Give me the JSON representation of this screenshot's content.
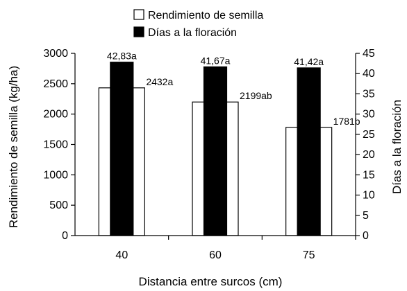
{
  "chart_data": {
    "type": "bar",
    "categories": [
      "40",
      "60",
      "75"
    ],
    "xlabel": "Distancia entre surcos (cm)",
    "ylabel_left": "Rendimiento de semilla (kg/ha)",
    "ylabel_right": "Días a la floración",
    "ylim_left": [
      0,
      3000
    ],
    "yticks_left": [
      0,
      500,
      1000,
      1500,
      2000,
      2500,
      3000
    ],
    "ylim_right": [
      0,
      45
    ],
    "yticks_right": [
      0,
      5,
      10,
      15,
      20,
      25,
      30,
      35,
      40,
      45
    ],
    "grid": false,
    "legend_position": "top-center",
    "series": [
      {
        "name": "Rendimiento de semilla",
        "axis": "left",
        "color": "#ffffff",
        "values": [
          2432,
          2199,
          1781
        ],
        "labels": [
          "2432a",
          "2199ab",
          "1781b"
        ]
      },
      {
        "name": "Días a la floración",
        "axis": "right",
        "color": "#000000",
        "values": [
          42.83,
          41.67,
          41.42
        ],
        "labels": [
          "42,83a",
          "41,67a",
          "41,42a"
        ]
      }
    ]
  }
}
